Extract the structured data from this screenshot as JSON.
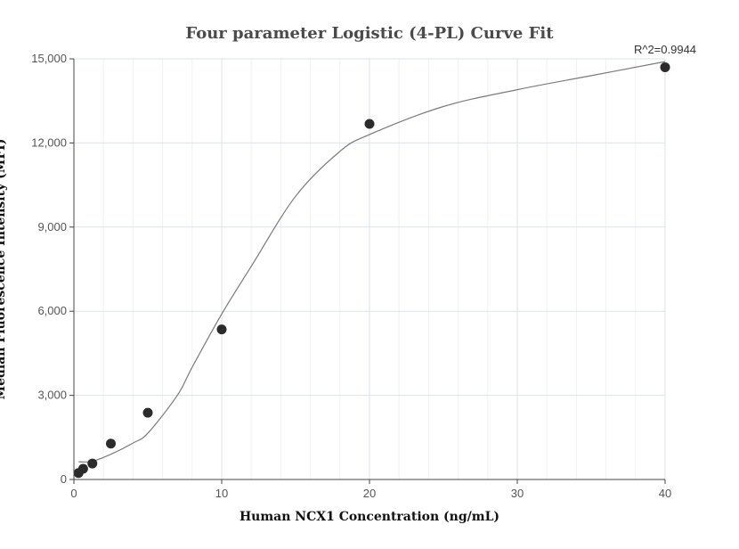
{
  "chart_data": {
    "type": "scatter",
    "title": "Four parameter Logistic (4-PL) Curve Fit",
    "xlabel": "Human NCX1 Concentration (ng/mL)",
    "ylabel": "Median Fluorescence Intensity (MFI)",
    "xlim": [
      0,
      40
    ],
    "ylim": [
      0,
      15000
    ],
    "x_ticks": [
      0,
      10,
      20,
      30,
      40
    ],
    "x_tick_labels": [
      "0",
      "10",
      "20",
      "30",
      "40"
    ],
    "y_ticks": [
      0,
      3000,
      6000,
      9000,
      12000,
      15000
    ],
    "y_tick_labels": [
      "0",
      "3,000",
      "6,000",
      "9,000",
      "12,000",
      "15,000"
    ],
    "grid": true,
    "annotation": "R^2=0.9944",
    "series": [
      {
        "type": "scatter",
        "color": "#2b2b2b",
        "x": [
          0.3125,
          0.625,
          1.25,
          2.5,
          5,
          10,
          20,
          40
        ],
        "y": [
          230,
          380,
          570,
          1280,
          2380,
          5350,
          12680,
          14700
        ]
      },
      {
        "type": "line",
        "color": "#7a7a7a",
        "x": [
          0.3125,
          1.25,
          2.5,
          4,
          5,
          7,
          8,
          10,
          12,
          15,
          18,
          20,
          25,
          30,
          35,
          40
        ],
        "y": [
          630,
          650,
          900,
          1300,
          1650,
          3000,
          4000,
          5900,
          7600,
          10100,
          11700,
          12300,
          13300,
          13900,
          14400,
          14900
        ]
      }
    ],
    "colors": {
      "grid_major": "#dde3ea",
      "grid_minor": "#eef1f5",
      "axis": "#444444"
    }
  }
}
